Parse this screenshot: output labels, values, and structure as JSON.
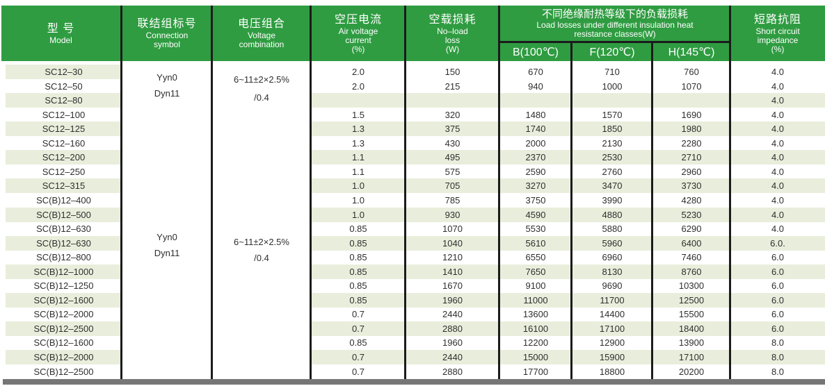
{
  "colors": {
    "header_green": "#2f9c41",
    "stripe": "#e9eedc",
    "border_black": "#1b1b1b",
    "bottom_bar_gray": "#767676",
    "header_text": "#ffffff",
    "body_text": "#2e2e2e"
  },
  "table": {
    "header": {
      "model": {
        "zh": "型 号",
        "en": "Model"
      },
      "connection": {
        "zh": "联结组标号",
        "en1": "Connection",
        "en2": "symbol"
      },
      "voltage": {
        "zh": "电压组合",
        "en1": "Voltage",
        "en2": "combination"
      },
      "air_current": {
        "zh": "空压电流",
        "en1": "Air voltage",
        "en2": "current",
        "unit": "(%)"
      },
      "no_load": {
        "zh": "空载损耗",
        "en1": "No–load",
        "en2": "loss",
        "unit": "(W)"
      },
      "load_group": {
        "zh": "不同绝缘耐热等级下的负载损耗",
        "en1": "Load losses under different insulation heat",
        "en2": "resistance classes(W)",
        "sub": [
          "B(100℃)",
          "F(120℃)",
          "H(145℃)"
        ]
      },
      "impedance": {
        "zh": "短路抗阻",
        "en1": "Short circuit",
        "en2": "impedance",
        "unit": "(%)"
      }
    },
    "merged": {
      "group1_connection": [
        "Yyn0",
        "Dyn11"
      ],
      "group1_voltage": [
        "6~11±2×2.5%",
        "/0.4"
      ],
      "group2_connection": [
        "Yyn0",
        "Dyn11"
      ],
      "group2_voltage": [
        "6~11±2×2.5%",
        "/0.4"
      ]
    },
    "rows": [
      {
        "model": "SC12–30",
        "current": "2.0",
        "no_load": "150",
        "b": "670",
        "f": "710",
        "h": "760",
        "impedance": "4.0"
      },
      {
        "model": "SC12–50",
        "current": "2.0",
        "no_load": "215",
        "b": "940",
        "f": "1000",
        "h": "1070",
        "impedance": "4.0"
      },
      {
        "model": "SC12–80",
        "current": "",
        "no_load": "",
        "b": "",
        "f": "",
        "h": "",
        "impedance": "4.0"
      },
      {
        "model": "SC12–100",
        "current": "1.5",
        "no_load": "320",
        "b": "1480",
        "f": "1570",
        "h": "1690",
        "impedance": "4.0"
      },
      {
        "model": "SC12–125",
        "current": "1.3",
        "no_load": "375",
        "b": "1740",
        "f": "1850",
        "h": "1980",
        "impedance": "4.0"
      },
      {
        "model": "SC12–160",
        "current": "1.3",
        "no_load": "430",
        "b": "2000",
        "f": "2130",
        "h": "2280",
        "impedance": "4.0"
      },
      {
        "model": "SC12–200",
        "current": "1.1",
        "no_load": "495",
        "b": "2370",
        "f": "2530",
        "h": "2710",
        "impedance": "4.0"
      },
      {
        "model": "SC12–250",
        "current": "1.1",
        "no_load": "575",
        "b": "2590",
        "f": "2760",
        "h": "2960",
        "impedance": "4.0"
      },
      {
        "model": "SC12–315",
        "current": "1.0",
        "no_load": "705",
        "b": "3270",
        "f": "3470",
        "h": "3730",
        "impedance": "4.0"
      },
      {
        "model": "SC(B)12–400",
        "current": "1.0",
        "no_load": "785",
        "b": "3750",
        "f": "3990",
        "h": "4280",
        "impedance": "4.0"
      },
      {
        "model": "SC(B)12–500",
        "current": "1.0",
        "no_load": "930",
        "b": "4590",
        "f": "4880",
        "h": "5230",
        "impedance": "4.0"
      },
      {
        "model": "SC(B)12–630",
        "current": "0.85",
        "no_load": "1070",
        "b": "5530",
        "f": "5880",
        "h": "6290",
        "impedance": "4.0"
      },
      {
        "model": "SC(B)12–630",
        "current": "0.85",
        "no_load": "1040",
        "b": "5610",
        "f": "5960",
        "h": "6400",
        "impedance": "6.0."
      },
      {
        "model": "SC(B)12–800",
        "current": "0.85",
        "no_load": "1210",
        "b": "6550",
        "f": "6960",
        "h": "7460",
        "impedance": "6.0"
      },
      {
        "model": "SC(B)12–1000",
        "current": "0.85",
        "no_load": "1410",
        "b": "7650",
        "f": "8130",
        "h": "8760",
        "impedance": "6.0"
      },
      {
        "model": "SC(B)12–1250",
        "current": "0.85",
        "no_load": "1670",
        "b": "9100",
        "f": "9690",
        "h": "10300",
        "impedance": "6.0"
      },
      {
        "model": "SC(B)12–1600",
        "current": "0.85",
        "no_load": "1960",
        "b": "11000",
        "f": "11700",
        "h": "12500",
        "impedance": "6.0"
      },
      {
        "model": "SC(B)12–2000",
        "current": "0.7",
        "no_load": "2440",
        "b": "13600",
        "f": "14400",
        "h": "15500",
        "impedance": "6.0"
      },
      {
        "model": "SC(B)12–2500",
        "current": "0.7",
        "no_load": "2880",
        "b": "16100",
        "f": "17100",
        "h": "18400",
        "impedance": "6.0"
      },
      {
        "model": "SC(B)12–1600",
        "current": "0.85",
        "no_load": "1960",
        "b": "12200",
        "f": "12900",
        "h": "13900",
        "impedance": "8.0"
      },
      {
        "model": "SC(B)12–2000",
        "current": "0.7",
        "no_load": "2440",
        "b": "15000",
        "f": "15900",
        "h": "17100",
        "impedance": "8.0"
      },
      {
        "model": "SC(B)12–2500",
        "current": "0.7",
        "no_load": "2880",
        "b": "17700",
        "f": "18800",
        "h": "20200",
        "impedance": "8.0"
      }
    ]
  }
}
